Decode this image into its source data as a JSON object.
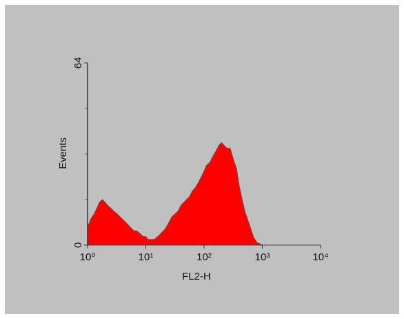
{
  "chart_data": {
    "type": "area",
    "title": "",
    "xlabel": "FL2-H",
    "ylabel": "Events",
    "x_scale": "log",
    "xlim": [
      1,
      10000
    ],
    "ylim": [
      0,
      64
    ],
    "x_ticks": [
      {
        "value": 1,
        "label": "10⁰"
      },
      {
        "value": 10,
        "label": "10¹"
      },
      {
        "value": 100,
        "label": "10²"
      },
      {
        "value": 1000,
        "label": "10³"
      },
      {
        "value": 10000,
        "label": "10⁴"
      }
    ],
    "y_ticks": [
      {
        "value": 0,
        "label": "0"
      },
      {
        "value": 64,
        "label": "64"
      }
    ],
    "grid": false,
    "series": [
      {
        "fill_color": "#ff0000",
        "x": [
          1,
          1.05,
          1.12,
          1.2,
          1.3,
          1.45,
          1.6,
          1.8,
          2.0,
          2.2,
          2.5,
          2.8,
          3.2,
          3.6,
          4.0,
          4.5,
          5.0,
          5.6,
          6.3,
          7.0,
          8.0,
          9.0,
          10,
          11,
          12.5,
          14,
          16,
          18,
          20,
          22,
          25,
          28,
          32,
          36,
          40,
          45,
          50,
          56,
          63,
          70,
          80,
          90,
          100,
          110,
          125,
          140,
          160,
          180,
          200,
          220,
          250,
          280,
          320,
          360,
          400,
          450,
          500,
          560,
          630,
          700,
          800,
          900,
          1000,
          10000
        ],
        "y": [
          8,
          7,
          9,
          10,
          11,
          13,
          15,
          16,
          15,
          14,
          13,
          12,
          11,
          10,
          9,
          8,
          7,
          6,
          5,
          5,
          4,
          3,
          3,
          2,
          2,
          2,
          3,
          4,
          5,
          6,
          8,
          10,
          11,
          12,
          14,
          15,
          16,
          17,
          19,
          20,
          22,
          24,
          26,
          28,
          29,
          31,
          33,
          35,
          36,
          35,
          34,
          34,
          30,
          27,
          21,
          16,
          12,
          9,
          6,
          3,
          1,
          0.5,
          0,
          0
        ]
      }
    ]
  }
}
